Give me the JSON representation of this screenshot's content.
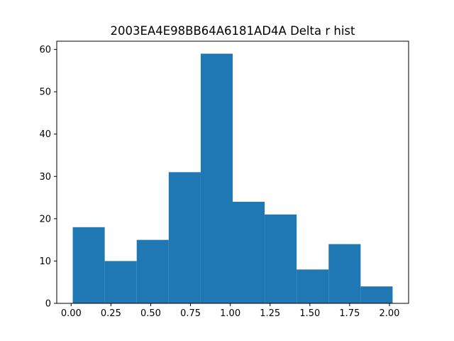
{
  "chart_data": {
    "type": "bar",
    "title": "2003EA4E98BB64A6181AD4A Delta r hist",
    "xlabel": "",
    "ylabel": "",
    "bin_edges": [
      0.01,
      0.211,
      0.412,
      0.613,
      0.814,
      1.015,
      1.216,
      1.417,
      1.618,
      1.819,
      2.02
    ],
    "values": [
      18,
      10,
      15,
      31,
      59,
      24,
      21,
      8,
      14,
      4
    ],
    "xlim": [
      -0.0905,
      2.1205
    ],
    "ylim": [
      0,
      61.95
    ],
    "xticks": [
      0.0,
      0.25,
      0.5,
      0.75,
      1.0,
      1.25,
      1.5,
      1.75,
      2.0
    ],
    "xtick_labels": [
      "0.00",
      "0.25",
      "0.50",
      "0.75",
      "1.00",
      "1.25",
      "1.50",
      "1.75",
      "2.00"
    ],
    "yticks": [
      0,
      10,
      20,
      30,
      40,
      50,
      60
    ],
    "ytick_labels": [
      "0",
      "10",
      "20",
      "30",
      "40",
      "50",
      "60"
    ],
    "bar_color": "#1f77b4",
    "grid": false,
    "legend": "none"
  }
}
